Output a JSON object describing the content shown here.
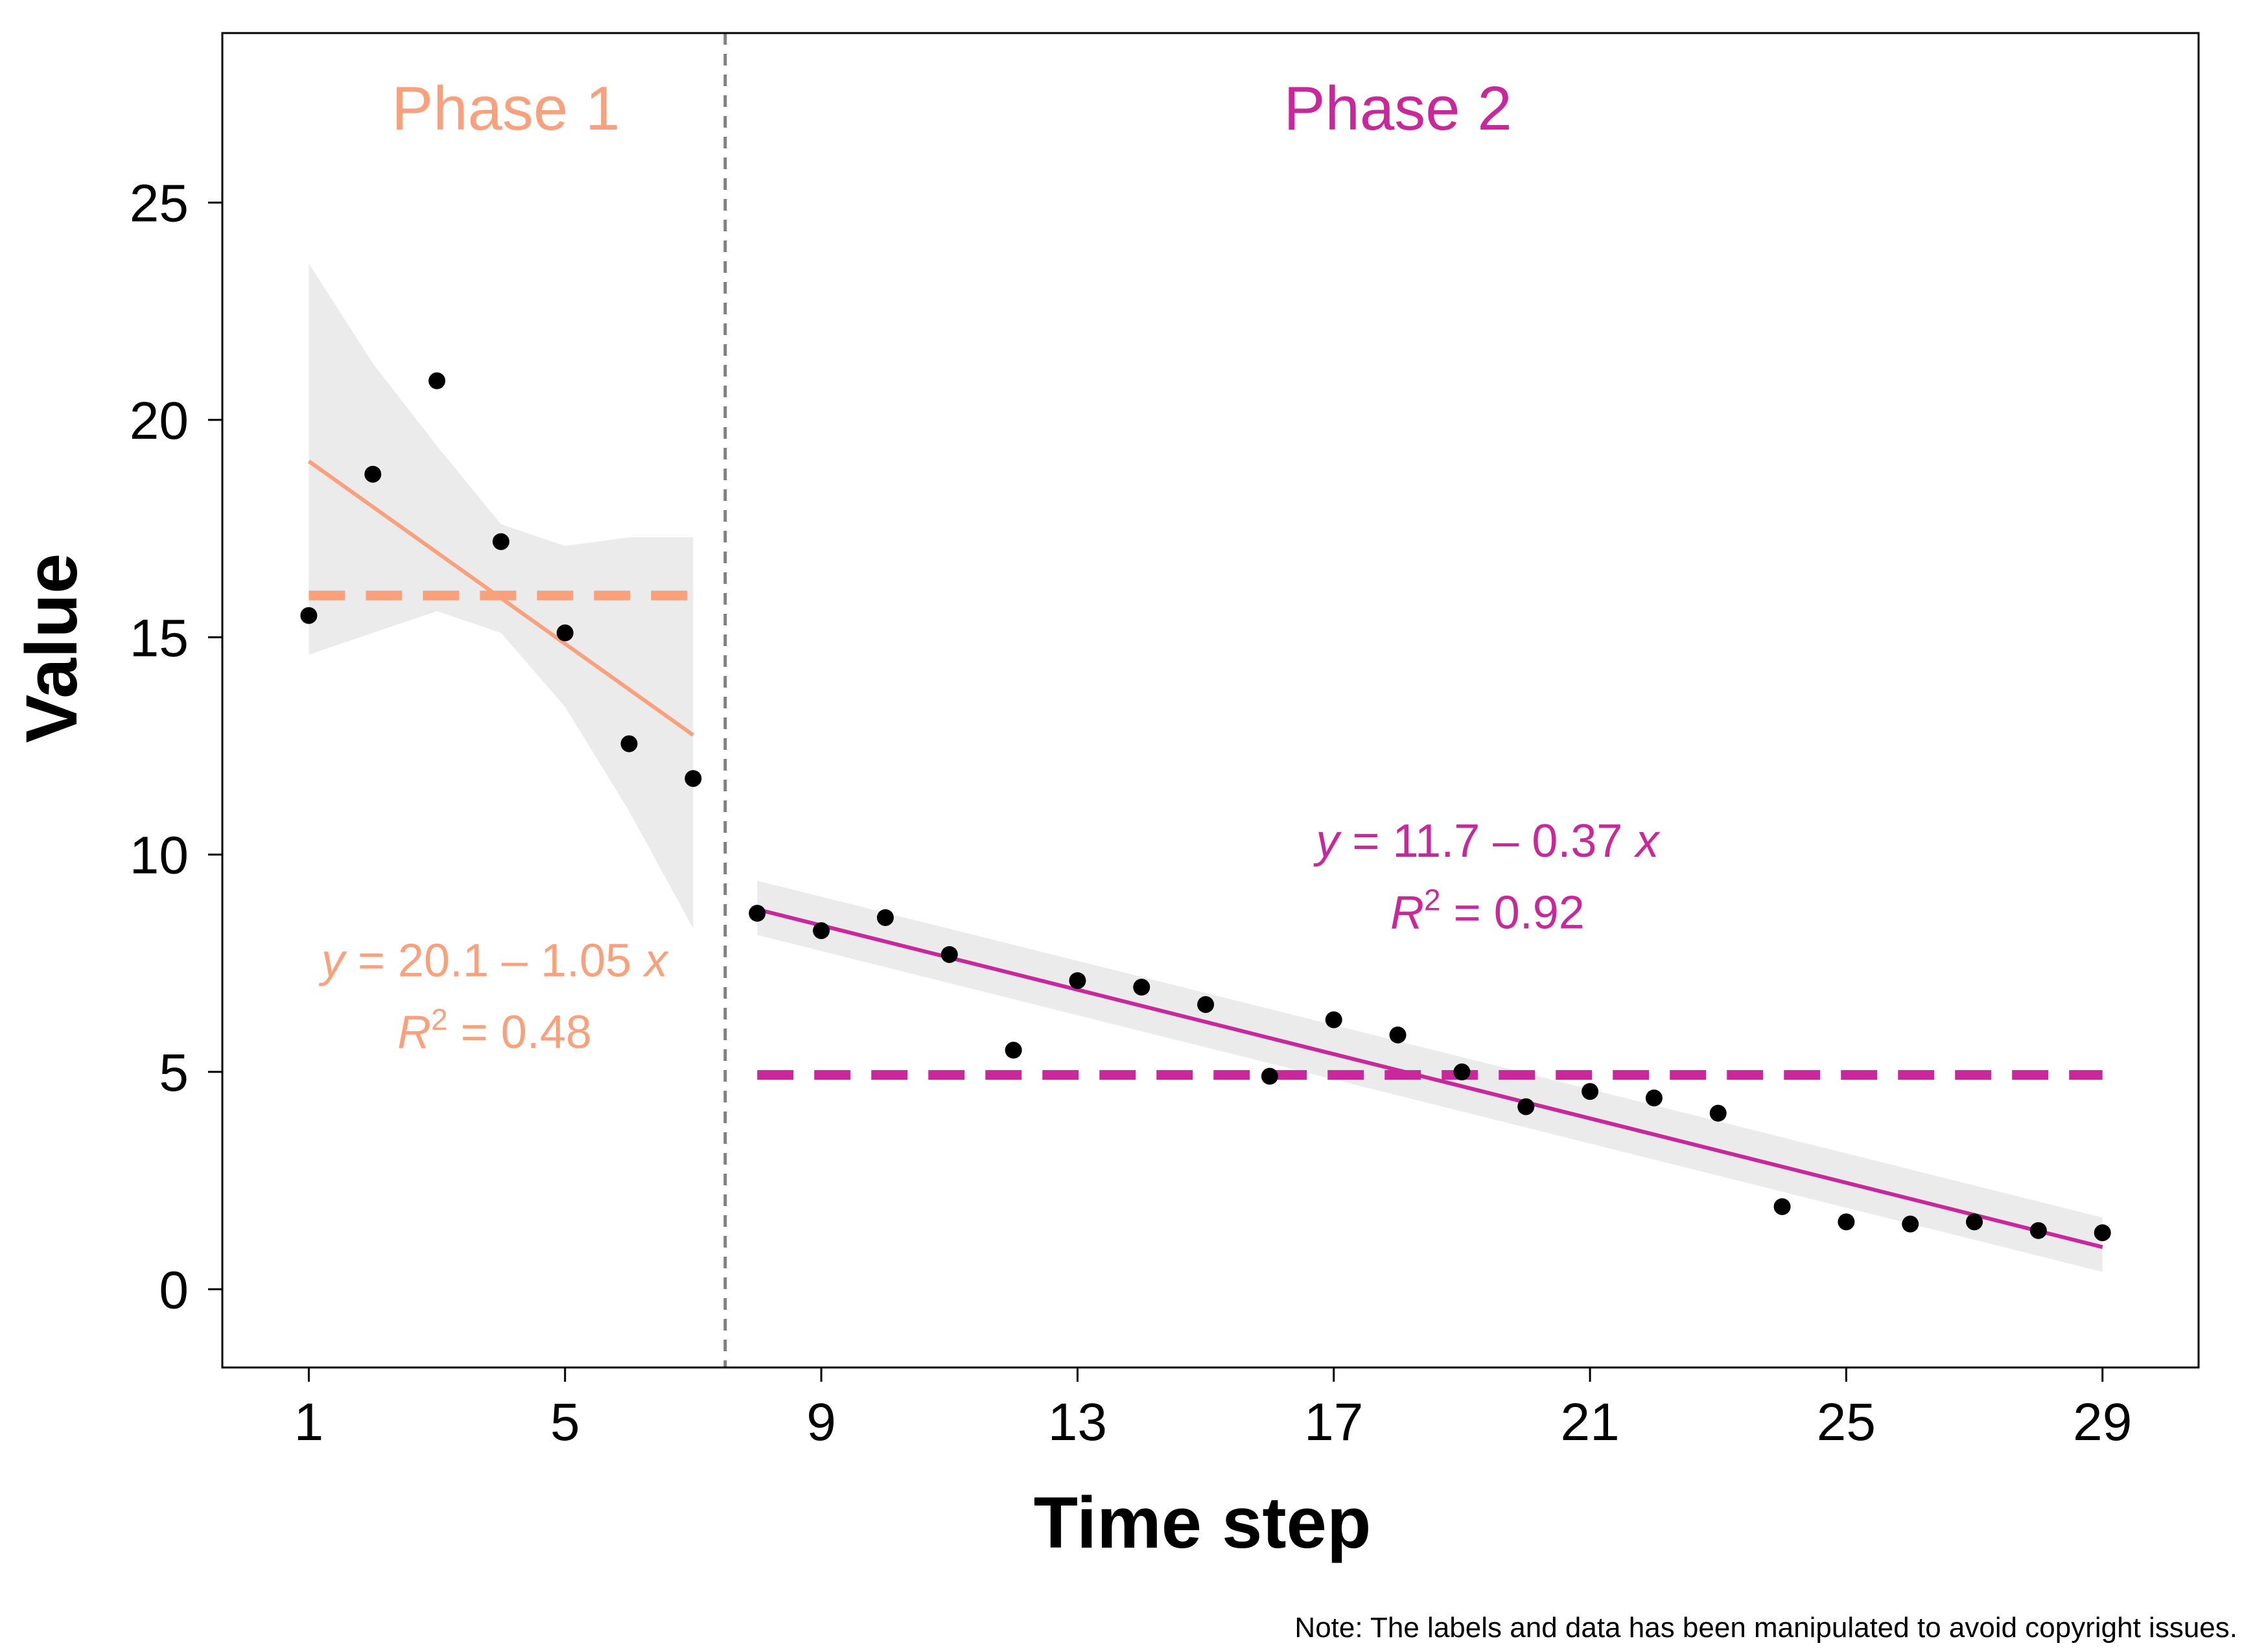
{
  "chart_data": {
    "type": "scatter",
    "title": "",
    "xlabel": "Time step",
    "ylabel": "Value",
    "xlim": [
      -0.35,
      30.5
    ],
    "ylim": [
      -1.8,
      28.9
    ],
    "xticks": [
      1,
      5,
      9,
      13,
      17,
      21,
      25,
      29
    ],
    "yticks": [
      0,
      5,
      10,
      15,
      20,
      25
    ],
    "phase_boundary": 7.5,
    "colors": {
      "phase1": "#f9a07d",
      "phase2": "#c8289b",
      "points": "#000000",
      "band": "#ebebeb",
      "boundary": "#808080"
    },
    "phases": [
      {
        "name": "Phase 1",
        "x": [
          1,
          2,
          3,
          4,
          5,
          6,
          7
        ],
        "y": [
          15.5,
          18.75,
          20.9,
          17.2,
          15.1,
          12.55,
          11.75
        ],
        "mean": 15.96,
        "fit": {
          "intercept": 20.1,
          "slope": -1.05,
          "x_range": [
            1,
            7
          ]
        },
        "ci_band": {
          "x": [
            1,
            2,
            3,
            4,
            5,
            6,
            7
          ],
          "lower": [
            14.6,
            15.1,
            15.6,
            15.1,
            13.4,
            11.0,
            8.3
          ],
          "upper": [
            23.6,
            21.3,
            19.4,
            17.6,
            17.1,
            17.3,
            17.3
          ]
        },
        "equation": {
          "prefix": "y",
          "rest": " = 20.1 – 1.05 ",
          "suffix": "x",
          "r2_prefix": "R",
          "r2_sup": "2",
          "r2_rest": " = 0.48"
        }
      },
      {
        "name": "Phase 2",
        "x": [
          8,
          9,
          10,
          11,
          12,
          13,
          14,
          15,
          16,
          17,
          18,
          19,
          20,
          21,
          22,
          23,
          24,
          25,
          26,
          27,
          28,
          29
        ],
        "y": [
          8.65,
          8.25,
          8.55,
          7.7,
          5.5,
          7.1,
          6.95,
          6.55,
          4.9,
          6.2,
          5.85,
          5.0,
          4.2,
          4.55,
          4.4,
          4.05,
          1.9,
          1.55,
          1.5,
          1.55,
          1.35,
          1.3
        ],
        "mean": 4.93,
        "fit": {
          "intercept": 11.7,
          "slope": -0.37,
          "x_range": [
            8,
            29
          ]
        },
        "ci_band": {
          "x": [
            8,
            29
          ],
          "lower": [
            8.15,
            0.4
          ],
          "upper": [
            9.4,
            1.65
          ]
        },
        "equation": {
          "prefix": "y",
          "rest": " = 11.7 – 0.37 ",
          "suffix": "x",
          "r2_prefix": "R",
          "r2_sup": "2",
          "r2_rest": " = 0.92"
        }
      }
    ]
  },
  "note": "Note: The labels and data has been manipulated to avoid copyright issues."
}
